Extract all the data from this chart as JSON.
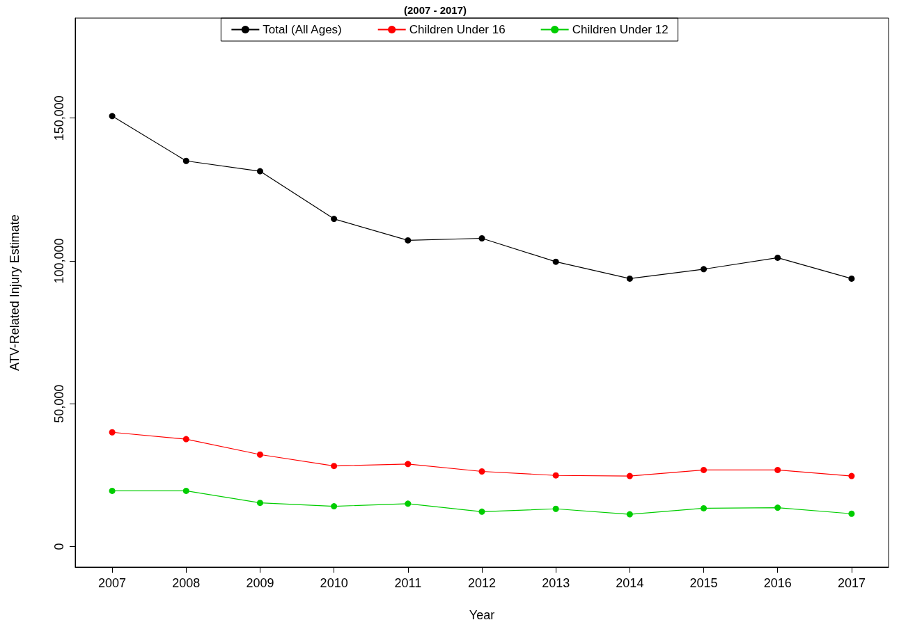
{
  "chart_data": {
    "type": "line",
    "title": "(2007 - 2017)",
    "xlabel": "Year",
    "ylabel": "ATV-Related Injury Estimate",
    "categories": [
      "2007",
      "2008",
      "2009",
      "2010",
      "2011",
      "2012",
      "2013",
      "2014",
      "2015",
      "2016",
      "2017"
    ],
    "series": [
      {
        "name": "Total (All Ages)",
        "color": "#000000",
        "values": [
          150700,
          135000,
          131400,
          114700,
          107200,
          107900,
          99700,
          93800,
          97100,
          101100,
          93800
        ]
      },
      {
        "name": "Children Under 16",
        "color": "#ff0000",
        "values": [
          40000,
          37600,
          32200,
          28200,
          28900,
          26300,
          24900,
          24700,
          26800,
          26800,
          24700
        ]
      },
      {
        "name": "Children Under 12",
        "color": "#00cd00",
        "values": [
          19500,
          19500,
          15300,
          14100,
          15000,
          12200,
          13200,
          11300,
          13400,
          13600,
          11500
        ]
      }
    ],
    "ylim": [
      -7200,
      185000
    ],
    "yticks": [
      {
        "value": 0,
        "label": "0"
      },
      {
        "value": 50000,
        "label": "50,000"
      },
      {
        "value": 100000,
        "label": "100,000"
      },
      {
        "value": 150000,
        "label": "150,000"
      }
    ],
    "grid": false,
    "legend": "top",
    "marker": "circle",
    "line_style": "solid"
  }
}
